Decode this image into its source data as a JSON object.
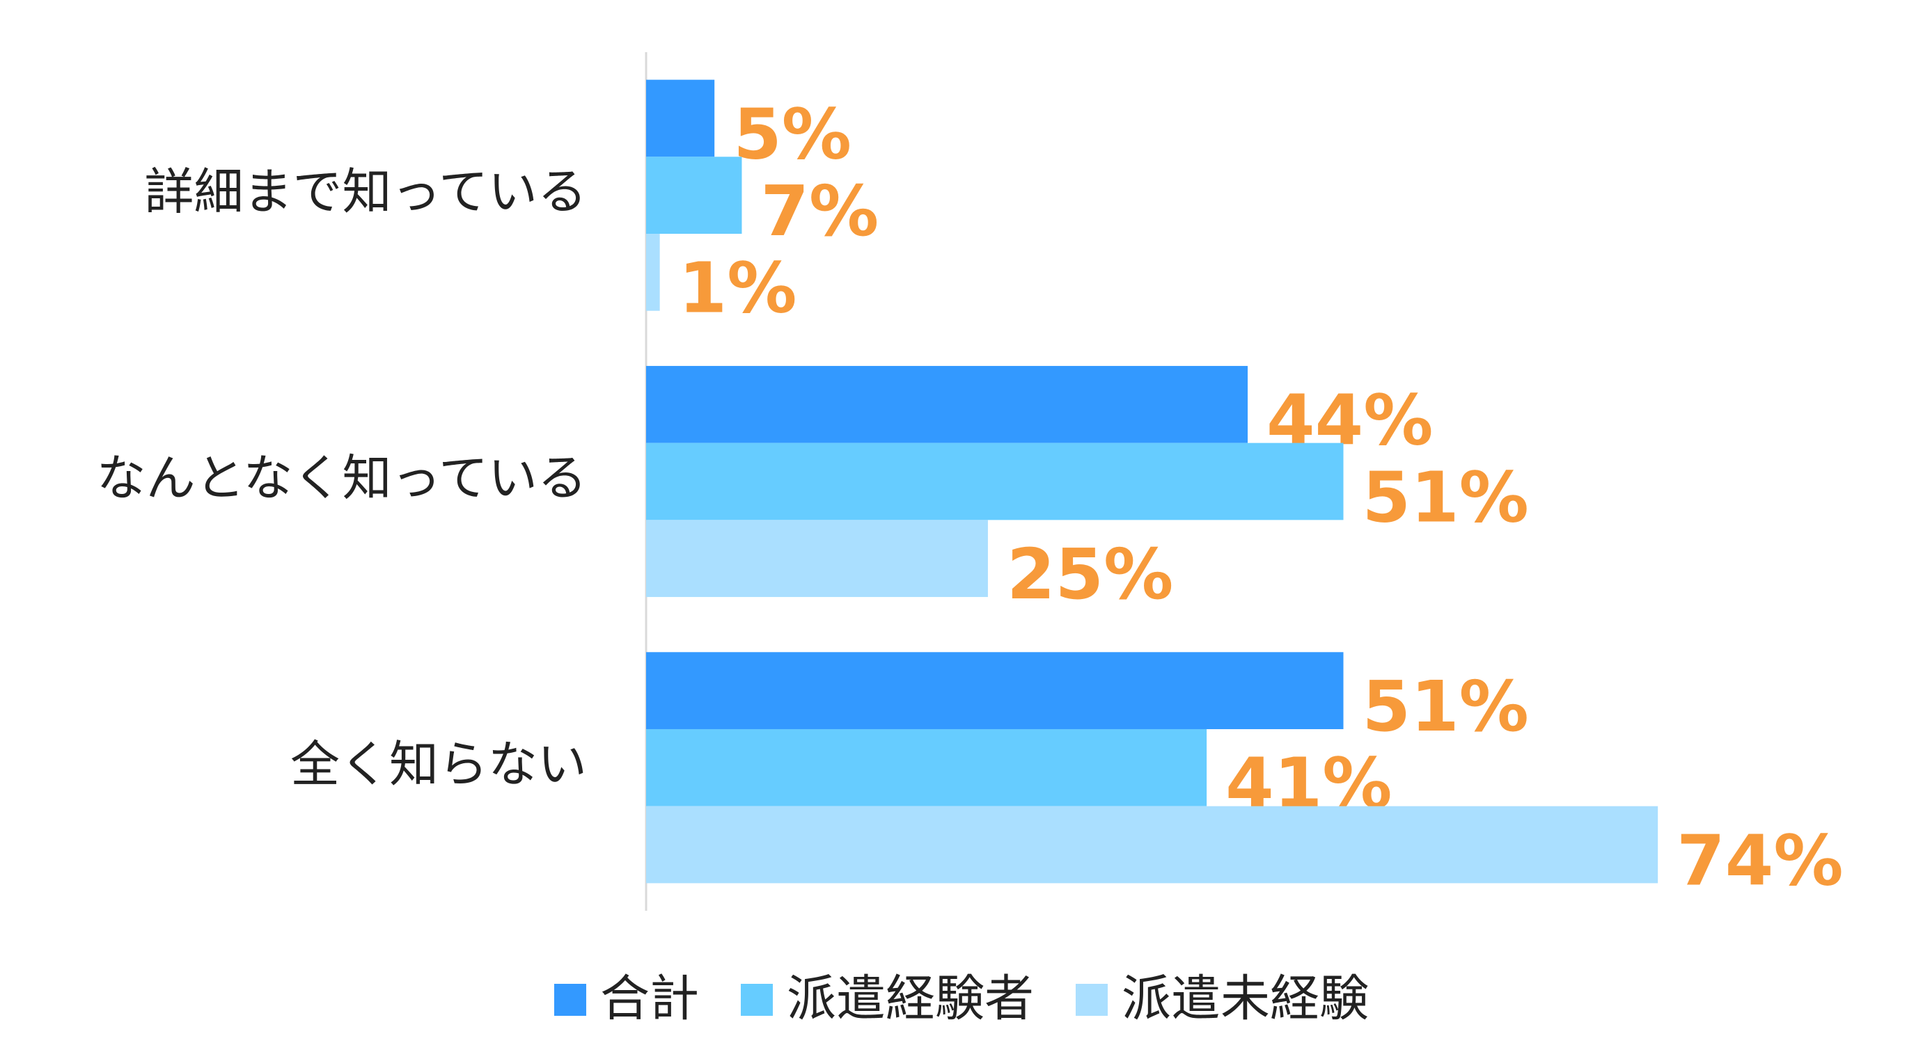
{
  "chart_data": {
    "type": "hbar",
    "categories": [
      "詳細まで知っている",
      "なんとなく知っている",
      "全く知らない"
    ],
    "series": [
      {
        "name": "合計",
        "color": "#3399ff",
        "values": [
          5,
          44,
          51
        ],
        "value_labels": [
          "5%",
          "44%",
          "51%"
        ]
      },
      {
        "name": "派遣経験者",
        "color": "#66ccff",
        "values": [
          7,
          51,
          41
        ],
        "value_labels": [
          "7%",
          "51%",
          "41%"
        ]
      },
      {
        "name": "派遣未経験",
        "color": "#aadfff",
        "values": [
          1,
          25,
          74
        ],
        "value_labels": [
          "1%",
          "25%",
          "74%"
        ]
      }
    ],
    "xlim": [
      0,
      80
    ],
    "label_color": "#f79a3a",
    "legend": "bottom"
  }
}
